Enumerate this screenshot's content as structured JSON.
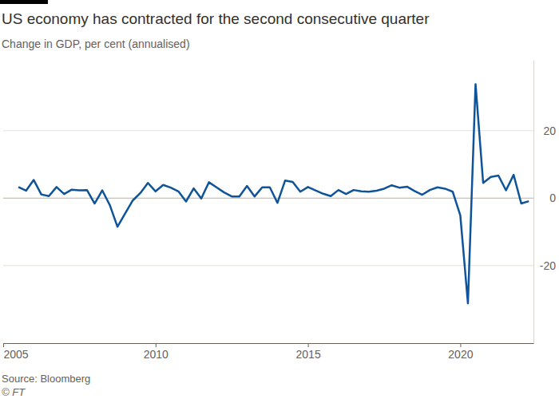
{
  "chart_data": {
    "type": "line",
    "title": "US economy has contracted for the second consecutive quarter",
    "subtitle": "Change in GDP, per cent (annualised)",
    "source": "Source: Bloomberg",
    "credit": "© FT",
    "x": [
      2005.5,
      2005.75,
      2006,
      2006.25,
      2006.5,
      2006.75,
      2007,
      2007.25,
      2007.5,
      2007.75,
      2008,
      2008.25,
      2008.5,
      2008.75,
      2009,
      2009.25,
      2009.5,
      2009.75,
      2010,
      2010.25,
      2010.5,
      2010.75,
      2011,
      2011.25,
      2011.5,
      2011.75,
      2012,
      2012.25,
      2012.5,
      2012.75,
      2013,
      2013.25,
      2013.5,
      2013.75,
      2014,
      2014.25,
      2014.5,
      2014.75,
      2015,
      2015.25,
      2015.5,
      2015.75,
      2016,
      2016.25,
      2016.5,
      2016.75,
      2017,
      2017.25,
      2017.5,
      2017.75,
      2018,
      2018.25,
      2018.5,
      2018.75,
      2019,
      2019.25,
      2019.5,
      2019.75,
      2020,
      2020.25,
      2020.5,
      2020.75,
      2021,
      2021.25,
      2021.5,
      2021.75,
      2022,
      2022.25
    ],
    "values": [
      3.3,
      2.2,
      5.4,
      1.1,
      0.6,
      3.3,
      1.2,
      2.5,
      2.3,
      2.4,
      -1.6,
      2.3,
      -2.1,
      -8.5,
      -4.6,
      -0.7,
      1.5,
      4.5,
      2.0,
      3.9,
      3.1,
      2.0,
      -1.0,
      2.9,
      -0.1,
      4.7,
      3.2,
      1.7,
      0.5,
      0.5,
      3.6,
      0.5,
      3.2,
      3.2,
      -1.4,
      5.2,
      4.8,
      1.9,
      3.3,
      2.3,
      1.3,
      0.6,
      2.4,
      1.2,
      2.4,
      2.0,
      1.9,
      2.2,
      2.8,
      3.8,
      3.1,
      3.4,
      2.1,
      1.0,
      2.4,
      3.2,
      2.8,
      1.9,
      -5.1,
      -31.2,
      33.8,
      4.5,
      6.3,
      6.7,
      2.3,
      6.9,
      -1.6,
      -0.9
    ],
    "color": "#0f5499",
    "xlim": [
      2005,
      2022.4
    ],
    "xticks": [
      2005,
      2010,
      2015,
      2020
    ],
    "ylim": [
      -43,
      41
    ],
    "yticks": [
      -20,
      0,
      20
    ],
    "grid": true
  }
}
